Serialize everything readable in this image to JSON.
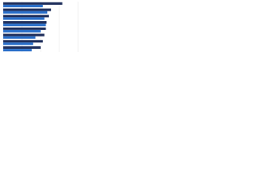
{
  "chart_data": {
    "type": "hbar",
    "categories": [
      null,
      null,
      null,
      null,
      null,
      null,
      null,
      null
    ],
    "series": [
      {
        "color": "#1f2f5c",
        "values": [
          79,
          64,
          61,
          58,
          57,
          55,
          53,
          50
        ]
      },
      {
        "color": "#2a6fc9",
        "values": [
          53,
          59,
          55,
          57,
          50,
          43,
          40,
          38
        ]
      }
    ],
    "xlim": [
      0,
      100
    ],
    "xticks": [
      0,
      25,
      50,
      75,
      100
    ],
    "grid": true
  }
}
